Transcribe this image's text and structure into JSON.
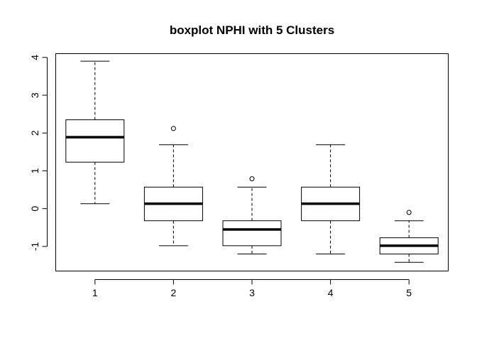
{
  "chart_data": {
    "type": "boxplot",
    "title": "boxplot NPHI with 5 Clusters",
    "xlabel": "",
    "ylabel": "",
    "categories": [
      "1",
      "2",
      "3",
      "4",
      "5"
    ],
    "yticks": [
      "-1",
      "0",
      "1",
      "2",
      "3",
      "4"
    ],
    "ylim": [
      -1.65,
      4.1
    ],
    "grid": false,
    "boxes": [
      {
        "category": "1",
        "min": 0.13,
        "q1": 1.23,
        "median": 1.89,
        "q3": 2.35,
        "max": 3.9,
        "outliers": []
      },
      {
        "category": "2",
        "min": -0.98,
        "q1": -0.32,
        "median": 0.13,
        "q3": 0.57,
        "max": 1.69,
        "outliers": [
          2.12
        ]
      },
      {
        "category": "3",
        "min": -1.2,
        "q1": -0.98,
        "median": -0.55,
        "q3": -0.32,
        "max": 0.57,
        "outliers": [
          0.79
        ]
      },
      {
        "category": "4",
        "min": -1.2,
        "q1": -0.32,
        "median": 0.13,
        "q3": 0.57,
        "max": 1.69,
        "outliers": []
      },
      {
        "category": "5",
        "min": -1.42,
        "q1": -1.2,
        "median": -0.98,
        "q3": -0.77,
        "max": -0.32,
        "outliers": [
          -0.1
        ]
      }
    ]
  }
}
